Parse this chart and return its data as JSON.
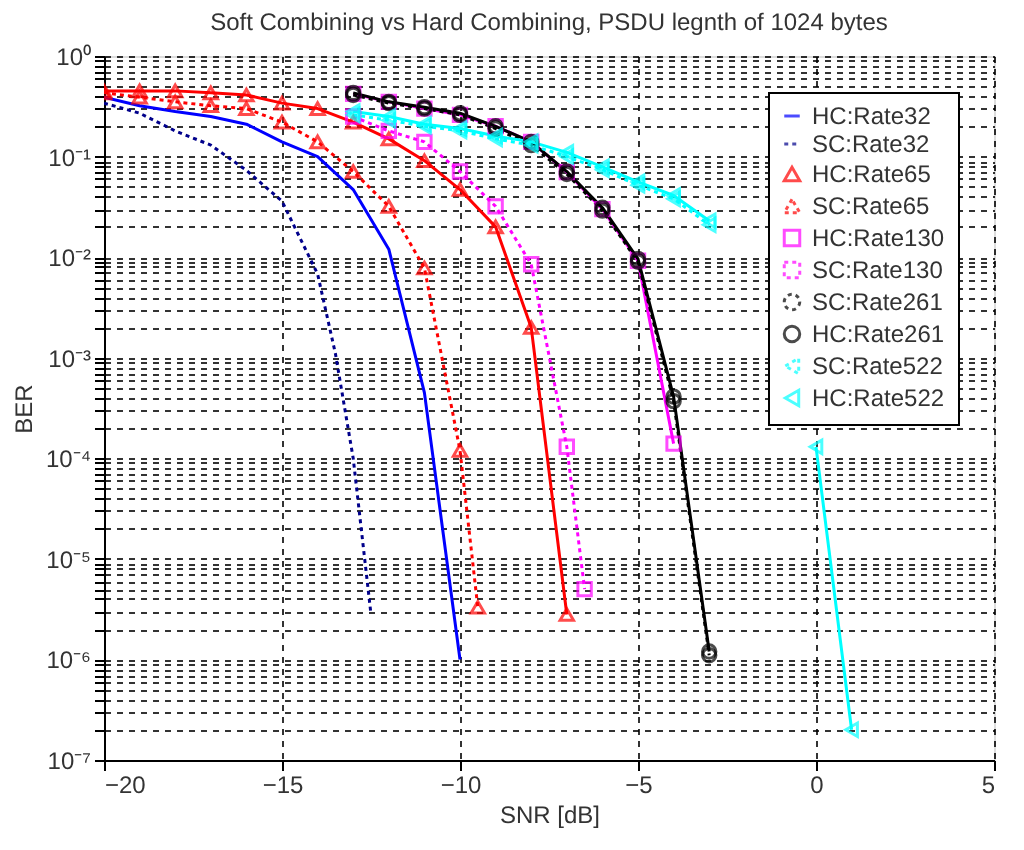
{
  "chart_data": {
    "type": "line",
    "title": "Soft Combining vs Hard Combining, PSDU legnth of 1024 bytes",
    "xlabel": "SNR [dB]",
    "ylabel": "BER",
    "log": "y",
    "xlim": [
      -20,
      5
    ],
    "xticks": [
      -20,
      -15,
      -10,
      -5,
      0,
      5
    ],
    "ylim": [
      1e-07,
      1
    ],
    "yticks": [
      {
        "value": 1e-07,
        "label": "10⁻⁷"
      },
      {
        "value": 1e-06,
        "label": "10⁻⁶"
      },
      {
        "value": 1e-05,
        "label": "10⁻⁵"
      },
      {
        "value": 0.0001,
        "label": "10⁻⁴"
      },
      {
        "value": 0.001,
        "label": "10⁻³"
      },
      {
        "value": 0.01,
        "label": "10⁻²"
      },
      {
        "value": 0.1,
        "label": "10⁻¹"
      },
      {
        "value": 1,
        "label": "10⁰"
      }
    ],
    "grid": true,
    "legend": "top right",
    "series": [
      {
        "name": "HC:Rate32",
        "color": "#0000ff",
        "line_style": "solid",
        "marker": "none",
        "x": [
          -20,
          -19,
          -18,
          -17,
          -16,
          -15,
          -14,
          -13,
          -12,
          -11,
          -10
        ],
        "values": [
          0.39,
          0.32,
          0.28,
          0.25,
          0.21,
          0.14,
          0.1,
          0.047,
          0.012,
          0.00045,
          1e-06
        ]
      },
      {
        "name": "SC:Rate32",
        "color": "#00008b",
        "line_style": "dotted",
        "marker": "none",
        "x": [
          -20,
          -19,
          -18,
          -17,
          -16,
          -15,
          -14,
          -13.5,
          -13,
          -12.5
        ],
        "values": [
          0.34,
          0.27,
          0.18,
          0.13,
          0.073,
          0.036,
          0.0068,
          0.0011,
          0.0001,
          2.8e-06
        ]
      },
      {
        "name": "HC:Rate65",
        "color": "#ff0000",
        "line_style": "solid",
        "marker": "triangle",
        "x": [
          -20,
          -19,
          -18,
          -17,
          -16,
          -15,
          -14,
          -13,
          -12,
          -11,
          -10,
          -9,
          -8,
          -7
        ],
        "values": [
          0.45,
          0.45,
          0.45,
          0.43,
          0.41,
          0.34,
          0.3,
          0.22,
          0.15,
          0.091,
          0.047,
          0.02,
          0.002,
          2.8e-06
        ]
      },
      {
        "name": "SC:Rate65",
        "color": "#ff0000",
        "line_style": "dotted",
        "marker": "triangle",
        "x": [
          -20,
          -19,
          -18,
          -17,
          -16,
          -15,
          -14,
          -13,
          -12,
          -11,
          -10,
          -9.5
        ],
        "values": [
          0.43,
          0.39,
          0.35,
          0.32,
          0.3,
          0.22,
          0.14,
          0.071,
          0.032,
          0.0078,
          0.00012,
          3.3e-06
        ]
      },
      {
        "name": "HC:Rate130",
        "color": "#ff00ff",
        "line_style": "solid",
        "marker": "square",
        "x": [
          -13,
          -12,
          -11,
          -10,
          -9,
          -8,
          -7,
          -6,
          -5,
          -4
        ],
        "values": [
          0.42,
          0.35,
          0.3,
          0.26,
          0.2,
          0.14,
          0.07,
          0.03,
          0.0092,
          0.00014
        ]
      },
      {
        "name": "SC:Rate130",
        "color": "#ff00ff",
        "line_style": "dotted",
        "marker": "square",
        "x": [
          -13,
          -12,
          -11,
          -10,
          -9,
          -8,
          -7,
          -6.5
        ],
        "values": [
          0.25,
          0.18,
          0.14,
          0.071,
          0.032,
          0.0085,
          0.00013,
          5e-06
        ]
      },
      {
        "name": "SC:Rate261",
        "color": "#000000",
        "line_style": "dotted",
        "marker": "circle",
        "x": [
          -13,
          -12,
          -11,
          -10,
          -9,
          -8,
          -7,
          -6,
          -5,
          -4,
          -3
        ],
        "values": [
          0.41,
          0.34,
          0.3,
          0.26,
          0.19,
          0.13,
          0.067,
          0.029,
          0.009,
          0.00037,
          1.1e-06
        ]
      },
      {
        "name": "HC:Rate261",
        "color": "#000000",
        "line_style": "solid",
        "marker": "circle",
        "x": [
          -13,
          -12,
          -11,
          -10,
          -9,
          -8,
          -7,
          -6,
          -5,
          -4,
          -3
        ],
        "values": [
          0.43,
          0.35,
          0.31,
          0.27,
          0.2,
          0.14,
          0.071,
          0.031,
          0.0096,
          0.00041,
          1.2e-06
        ]
      },
      {
        "name": "SC:Rate522",
        "color": "#00ffff",
        "line_style": "dotted",
        "marker": "triangle-left",
        "x": [
          -13,
          -12,
          -11,
          -10,
          -9,
          -8,
          -7,
          -6,
          -5,
          -4,
          -3
        ],
        "values": [
          0.26,
          0.23,
          0.2,
          0.18,
          0.15,
          0.13,
          0.1,
          0.074,
          0.052,
          0.038,
          0.021
        ]
      },
      {
        "name": "HC:Rate522",
        "color": "#00ffff",
        "line_style": "solid",
        "marker": "triangle-left",
        "x": [
          -13,
          -12,
          -11,
          -10,
          -9,
          -8,
          -7,
          -6,
          -5,
          -4,
          -3,
          -2,
          -1,
          0,
          1
        ],
        "values": [
          0.28,
          0.25,
          0.21,
          0.19,
          0.16,
          0.14,
          0.11,
          0.079,
          0.056,
          0.041,
          0.023,
          null,
          null,
          0.00013,
          2e-07
        ]
      }
    ]
  }
}
